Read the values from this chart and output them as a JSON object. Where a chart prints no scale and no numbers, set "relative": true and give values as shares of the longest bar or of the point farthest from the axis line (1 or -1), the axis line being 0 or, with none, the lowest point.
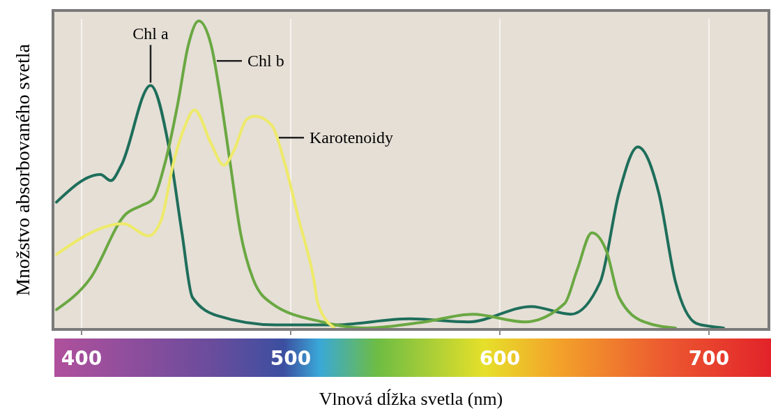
{
  "chart_data": {
    "type": "line",
    "relative": true,
    "xlabel": "Vlnová dĺžka svetla (nm)",
    "ylabel": "Množstvo absorbovaného svetla",
    "xlim": [
      387,
      728
    ],
    "xticks": [
      400,
      500,
      600,
      700
    ],
    "grid": "x",
    "line_style": "solid",
    "series": [
      {
        "name": "Chl a",
        "color": "#1e6e5a",
        "x": [
          388,
          409,
          414,
          419,
          433,
          442,
          448,
          453,
          465,
          493,
          520,
          557,
          585,
          615,
          634,
          648,
          657,
          666,
          676,
          684,
          694,
          701,
          707
        ],
        "values": [
          0.41,
          0.5,
          0.48,
          0.53,
          0.79,
          0.58,
          0.31,
          0.1,
          0.04,
          0.01,
          0.01,
          0.03,
          0.02,
          0.07,
          0.045,
          0.15,
          0.44,
          0.59,
          0.44,
          0.15,
          0.015,
          0.005,
          0
        ]
      },
      {
        "name": "Chl b",
        "color": "#6aa842",
        "x": [
          388,
          404,
          421,
          429,
          434,
          440,
          446,
          451,
          456,
          462,
          466,
          471,
          476,
          482,
          491,
          515,
          536,
          564,
          587,
          612,
          631,
          637,
          644,
          651,
          657,
          669,
          684
        ],
        "values": [
          0.06,
          0.16,
          0.37,
          0.4,
          0.42,
          0.54,
          0.73,
          0.92,
          1,
          0.92,
          0.77,
          0.54,
          0.31,
          0.16,
          0.08,
          0.02,
          0,
          0.02,
          0.045,
          0.02,
          0.08,
          0.19,
          0.31,
          0.25,
          0.1,
          0.02,
          0
        ]
      },
      {
        "name": "Karotenoidy",
        "color": "#eeea6a",
        "x": [
          388,
          420,
          432,
          438,
          444,
          449,
          454,
          462,
          468,
          473,
          479,
          483,
          491,
          497,
          504,
          511,
          513,
          521
        ],
        "values": [
          0.24,
          0.34,
          0.3,
          0.35,
          0.54,
          0.65,
          0.71,
          0.6,
          0.53,
          0.58,
          0.68,
          0.69,
          0.66,
          0.54,
          0.35,
          0.16,
          0.08,
          0
        ]
      }
    ]
  }
}
